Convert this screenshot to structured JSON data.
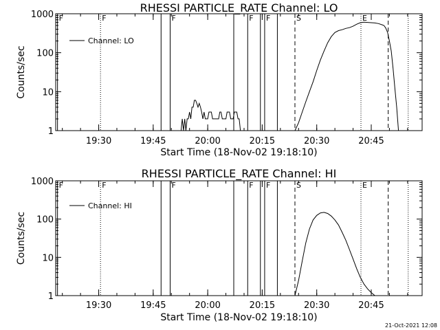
{
  "footer": {
    "timestamp": "21-Oct-2021 12:08"
  },
  "chart_data": [
    {
      "type": "line",
      "title": "RHESSI PARTICLE_RATE Channel: LO",
      "xlabel": "Start Time (18-Nov-02 19:18:10)",
      "ylabel": "Counts/sec",
      "y_scale": "log",
      "ylim": [
        1,
        1000
      ],
      "xlim": [
        "19:18:10",
        "20:59:00"
      ],
      "x_ticks": [
        "19:30",
        "19:45",
        "20:00",
        "20:15",
        "20:30",
        "20:45"
      ],
      "y_ticks": [
        "1",
        "10",
        "100",
        "1000"
      ],
      "legend": {
        "position": "top-left",
        "entries": [
          "Channel: LO"
        ]
      },
      "flag_markers": [
        {
          "label": "F",
          "time": "19:18:40",
          "style": "solid"
        },
        {
          "label": "F",
          "time": "19:30:30",
          "style": "dotted"
        },
        {
          "label": "",
          "time": "19:47:10",
          "style": "solid"
        },
        {
          "label": "F",
          "time": "19:49:40",
          "style": "solid"
        },
        {
          "label": "",
          "time": "20:07:10",
          "style": "solid"
        },
        {
          "label": "F",
          "time": "20:11:00",
          "style": "solid"
        },
        {
          "label": "",
          "time": "20:14:30",
          "style": "solid"
        },
        {
          "label": "F",
          "time": "20:15:40",
          "style": "solid"
        },
        {
          "label": "",
          "time": "20:19:10",
          "style": "solid"
        },
        {
          "label": "S",
          "time": "20:24:00",
          "style": "dashed"
        },
        {
          "label": "E",
          "time": "20:42:10",
          "style": "dotted"
        },
        {
          "label": "",
          "time": "20:49:40",
          "style": "dashed"
        },
        {
          "label": "",
          "time": "20:55:10",
          "style": "dotted"
        }
      ],
      "series": [
        {
          "name": "Channel: LO",
          "segments": [
            {
              "x": [
                "19:52:40",
                "19:53:00",
                "19:53:20",
                "19:53:40",
                "19:54:00",
                "19:54:20",
                "19:54:40",
                "19:55:00",
                "19:55:20",
                "19:55:40",
                "19:56:00",
                "19:56:20",
                "19:56:40",
                "19:57:00",
                "19:57:20",
                "19:57:40",
                "19:58:00",
                "19:58:20",
                "19:58:40",
                "19:59:00",
                "19:59:20",
                "19:59:40",
                "20:00:00",
                "20:00:20",
                "20:00:40",
                "20:01:00",
                "20:01:20",
                "20:01:40",
                "20:02:00",
                "20:02:20",
                "20:02:40",
                "20:03:00",
                "20:03:20",
                "20:03:40",
                "20:04:00",
                "20:04:20",
                "20:04:40",
                "20:05:00",
                "20:05:20",
                "20:05:40",
                "20:06:00",
                "20:06:20",
                "20:06:40",
                "20:07:00",
                "20:07:20",
                "20:07:40",
                "20:08:00",
                "20:08:20",
                "20:08:40",
                "20:09:00",
                "20:09:20"
              ],
              "y": [
                1,
                2,
                1,
                2,
                1,
                2,
                2,
                3,
                2,
                4,
                4,
                6,
                6,
                5,
                4,
                5,
                4,
                3,
                2,
                3,
                2,
                2,
                2,
                3,
                3,
                3,
                2,
                2,
                2,
                2,
                2,
                2,
                3,
                3,
                2,
                2,
                2,
                2,
                3,
                3,
                3,
                2,
                2,
                2,
                3,
                3,
                3,
                2,
                2,
                1,
                1
              ]
            },
            {
              "x": [
                "20:24:00",
                "20:25:00",
                "20:26:00",
                "20:27:00",
                "20:28:00",
                "20:29:00",
                "20:30:00",
                "20:31:00",
                "20:32:00",
                "20:33:00",
                "20:34:00",
                "20:35:00",
                "20:36:00",
                "20:37:00",
                "20:38:00",
                "20:39:00",
                "20:40:00",
                "20:41:00",
                "20:42:00",
                "20:43:00",
                "20:44:00",
                "20:45:00",
                "20:46:00",
                "20:47:00",
                "20:48:00",
                "20:48:30",
                "20:49:00",
                "20:49:30",
                "20:50:00",
                "20:50:30",
                "20:51:00",
                "20:51:30",
                "20:52:00",
                "20:52:30"
              ],
              "y": [
                1,
                1.6,
                3,
                5.5,
                10,
                18,
                35,
                65,
                110,
                180,
                260,
                330,
                370,
                390,
                420,
                440,
                480,
                540,
                590,
                610,
                600,
                590,
                580,
                560,
                520,
                500,
                430,
                330,
                200,
                110,
                40,
                12,
                4,
                1
              ]
            }
          ]
        }
      ]
    },
    {
      "type": "line",
      "title": "RHESSI PARTICLE_RATE Channel: HI",
      "xlabel": "Start Time (18-Nov-02 19:18:10)",
      "ylabel": "Counts/sec",
      "y_scale": "log",
      "ylim": [
        1,
        1000
      ],
      "xlim": [
        "19:18:10",
        "20:59:00"
      ],
      "x_ticks": [
        "19:30",
        "19:45",
        "20:00",
        "20:15",
        "20:30",
        "20:45"
      ],
      "y_ticks": [
        "1",
        "10",
        "100",
        "1000"
      ],
      "legend": {
        "position": "top-left",
        "entries": [
          "Channel: HI"
        ]
      },
      "flag_markers": [
        {
          "label": "F",
          "time": "19:18:40",
          "style": "solid"
        },
        {
          "label": "F",
          "time": "19:30:30",
          "style": "dotted"
        },
        {
          "label": "",
          "time": "19:47:10",
          "style": "solid"
        },
        {
          "label": "F",
          "time": "19:49:40",
          "style": "solid"
        },
        {
          "label": "",
          "time": "20:07:10",
          "style": "solid"
        },
        {
          "label": "F",
          "time": "20:11:00",
          "style": "solid"
        },
        {
          "label": "",
          "time": "20:14:30",
          "style": "solid"
        },
        {
          "label": "F",
          "time": "20:15:40",
          "style": "solid"
        },
        {
          "label": "",
          "time": "20:19:10",
          "style": "solid"
        },
        {
          "label": "S",
          "time": "20:24:00",
          "style": "dashed"
        },
        {
          "label": "E",
          "time": "20:42:10",
          "style": "dotted"
        },
        {
          "label": "",
          "time": "20:49:40",
          "style": "dashed"
        },
        {
          "label": "",
          "time": "20:55:10",
          "style": "dotted"
        }
      ],
      "series": [
        {
          "name": "Channel: HI",
          "segments": [
            {
              "x": [
                "20:24:00",
                "20:25:00",
                "20:26:00",
                "20:27:00",
                "20:28:00",
                "20:29:00",
                "20:30:00",
                "20:31:00",
                "20:32:00",
                "20:33:00",
                "20:34:00",
                "20:35:00",
                "20:36:00",
                "20:37:00",
                "20:38:00",
                "20:39:00",
                "20:40:00",
                "20:41:00",
                "20:42:00",
                "20:43:00",
                "20:44:00",
                "20:45:00",
                "20:46:00"
              ],
              "y": [
                1,
                2.5,
                8,
                24,
                55,
                95,
                125,
                145,
                150,
                140,
                120,
                95,
                70,
                45,
                28,
                16,
                9,
                5,
                3,
                2,
                1.5,
                1.2,
                1
              ]
            }
          ]
        }
      ]
    }
  ]
}
